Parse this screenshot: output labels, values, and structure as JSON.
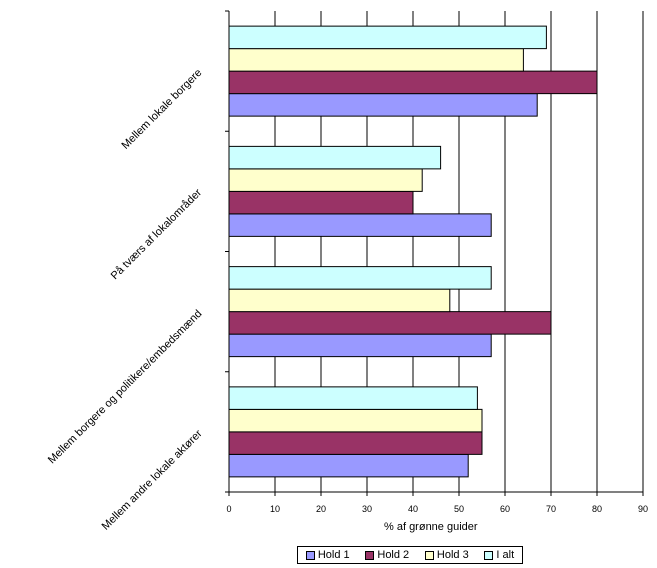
{
  "chart_data": {
    "type": "bar",
    "orientation": "horizontal",
    "categories": [
      "Mellem lokale borgere",
      "På tværs af lokalområder",
      "Mellem borgere og politikere/embedsmænd",
      "Mellem andre lokale aktører"
    ],
    "series": [
      {
        "name": "Hold  1",
        "color": "#9999ff",
        "values": [
          67,
          57,
          57,
          52
        ]
      },
      {
        "name": "Hold  2",
        "color": "#993366",
        "values": [
          80,
          40,
          70,
          55
        ]
      },
      {
        "name": "Hold  3",
        "color": "#ffffcc",
        "values": [
          64,
          42,
          48,
          55
        ]
      },
      {
        "name": "I alt",
        "color": "#ccffff",
        "values": [
          69,
          46,
          57,
          54
        ]
      }
    ],
    "xlabel": "% af grønne guider",
    "xlim": [
      0,
      90
    ],
    "xticks": [
      0,
      10,
      20,
      30,
      40,
      50,
      60,
      70,
      80,
      90
    ],
    "grid": true,
    "legend_position": "bottom"
  }
}
